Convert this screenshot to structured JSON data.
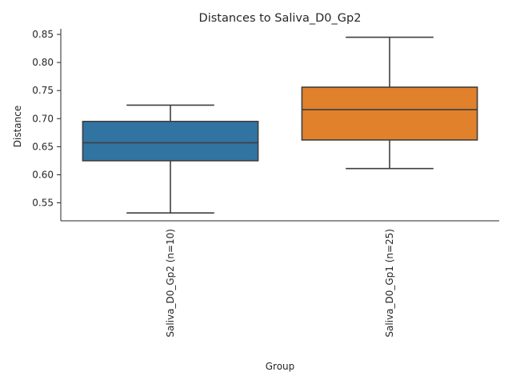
{
  "chart_data": {
    "type": "box",
    "title": "Distances to Saliva_D0_Gp2",
    "xlabel": "Group",
    "ylabel": "Distance",
    "ylim": [
      0.518,
      0.86
    ],
    "yticks": [
      0.55,
      0.6,
      0.65,
      0.7,
      0.75,
      0.8,
      0.85
    ],
    "ytick_labels": [
      "0.55",
      "0.60",
      "0.65",
      "0.70",
      "0.75",
      "0.80",
      "0.85"
    ],
    "grid": false,
    "categories": [
      "Saliva_D0_Gp2 (n=10)",
      "Saliva_D0_Gp1 (n=25)"
    ],
    "boxes": [
      {
        "category": "Saliva_D0_Gp2 (n=10)",
        "whisker_low": 0.532,
        "q1": 0.625,
        "median": 0.657,
        "q3": 0.695,
        "whisker_high": 0.724,
        "color": "#3274a1"
      },
      {
        "category": "Saliva_D0_Gp1 (n=25)",
        "whisker_low": 0.611,
        "q1": 0.662,
        "median": 0.716,
        "q3": 0.756,
        "whisker_high": 0.845,
        "color": "#e1812c"
      }
    ]
  }
}
